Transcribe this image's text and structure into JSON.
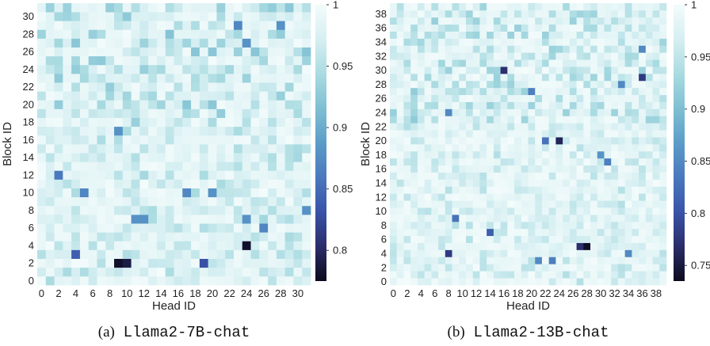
{
  "colors": {
    "scale": [
      "#0c0a1c",
      "#2a2d6a",
      "#3953a8",
      "#4a78bd",
      "#5b9cc8",
      "#7fbfd3",
      "#a9dbe1",
      "#d6eff2",
      "#f3fbfb"
    ],
    "caption_text": "#111111",
    "axis_text": "#222222"
  },
  "chart_data": [
    {
      "type": "heatmap",
      "caption_prefix": "(a)",
      "caption_model": "Llama2-7B-chat",
      "xlabel": "Head ID",
      "ylabel": "Block ID",
      "n_heads": 32,
      "n_blocks": 32,
      "x_ticks": [
        "0",
        "2",
        "4",
        "6",
        "8",
        "10",
        "12",
        "14",
        "16",
        "18",
        "20",
        "22",
        "24",
        "26",
        "28",
        "30"
      ],
      "y_ticks": [
        "0",
        "2",
        "4",
        "6",
        "8",
        "10",
        "12",
        "14",
        "16",
        "18",
        "20",
        "22",
        "24",
        "26",
        "28",
        "30"
      ],
      "value_range": [
        0.775,
        1.0
      ],
      "colorbar_ticks": [
        0.8,
        0.85,
        0.9,
        0.95,
        1
      ],
      "colorbar_tick_labels": [
        "0.8",
        "0.85",
        "0.9",
        "0.95",
        "1"
      ],
      "min_cells": [
        {
          "block": 2,
          "head": 9,
          "value": 0.78
        },
        {
          "block": 2,
          "head": 10,
          "value": 0.79
        },
        {
          "block": 4,
          "head": 24,
          "value": 0.78
        },
        {
          "block": 2,
          "head": 19,
          "value": 0.83
        },
        {
          "block": 3,
          "head": 4,
          "value": 0.84
        },
        {
          "block": 12,
          "head": 2,
          "value": 0.86
        },
        {
          "block": 10,
          "head": 5,
          "value": 0.87
        },
        {
          "block": 10,
          "head": 17,
          "value": 0.87
        },
        {
          "block": 10,
          "head": 20,
          "value": 0.88
        },
        {
          "block": 7,
          "head": 11,
          "value": 0.88
        },
        {
          "block": 7,
          "head": 12,
          "value": 0.88
        },
        {
          "block": 7,
          "head": 24,
          "value": 0.88
        },
        {
          "block": 6,
          "head": 26,
          "value": 0.87
        },
        {
          "block": 17,
          "head": 9,
          "value": 0.88
        },
        {
          "block": 29,
          "head": 23,
          "value": 0.87
        },
        {
          "block": 29,
          "head": 28,
          "value": 0.88
        },
        {
          "block": 27,
          "head": 24,
          "value": 0.88
        },
        {
          "block": 8,
          "head": 31,
          "value": 0.88
        }
      ]
    },
    {
      "type": "heatmap",
      "caption_prefix": "(b)",
      "caption_model": "Llama2-13B-chat",
      "xlabel": "Head ID",
      "ylabel": "Block ID",
      "n_heads": 40,
      "n_blocks": 40,
      "x_ticks": [
        "0",
        "2",
        "4",
        "6",
        "8",
        "10",
        "12",
        "14",
        "16",
        "18",
        "20",
        "22",
        "24",
        "26",
        "28",
        "30",
        "32",
        "34",
        "36",
        "38"
      ],
      "y_ticks": [
        "0",
        "2",
        "4",
        "6",
        "8",
        "10",
        "12",
        "14",
        "16",
        "18",
        "20",
        "22",
        "24",
        "26",
        "28",
        "30",
        "32",
        "34",
        "36",
        "38"
      ],
      "value_range": [
        0.735,
        1.0
      ],
      "colorbar_ticks": [
        0.75,
        0.8,
        0.85,
        0.9,
        0.95,
        1
      ],
      "colorbar_tick_labels": [
        "0.75",
        "0.8",
        "0.85",
        "0.9",
        "0.95",
        "1"
      ],
      "min_cells": [
        {
          "block": 5,
          "head": 28,
          "value": 0.74
        },
        {
          "block": 5,
          "head": 27,
          "value": 0.77
        },
        {
          "block": 4,
          "head": 8,
          "value": 0.78
        },
        {
          "block": 20,
          "head": 24,
          "value": 0.76
        },
        {
          "block": 30,
          "head": 16,
          "value": 0.77
        },
        {
          "block": 29,
          "head": 36,
          "value": 0.78
        },
        {
          "block": 7,
          "head": 14,
          "value": 0.81
        },
        {
          "block": 9,
          "head": 9,
          "value": 0.83
        },
        {
          "block": 20,
          "head": 22,
          "value": 0.83
        },
        {
          "block": 3,
          "head": 23,
          "value": 0.84
        },
        {
          "block": 3,
          "head": 21,
          "value": 0.85
        },
        {
          "block": 24,
          "head": 8,
          "value": 0.85
        },
        {
          "block": 27,
          "head": 20,
          "value": 0.84
        },
        {
          "block": 28,
          "head": 33,
          "value": 0.85
        },
        {
          "block": 17,
          "head": 31,
          "value": 0.84
        },
        {
          "block": 18,
          "head": 30,
          "value": 0.86
        },
        {
          "block": 33,
          "head": 36,
          "value": 0.85
        },
        {
          "block": 4,
          "head": 34,
          "value": 0.85
        }
      ]
    }
  ]
}
